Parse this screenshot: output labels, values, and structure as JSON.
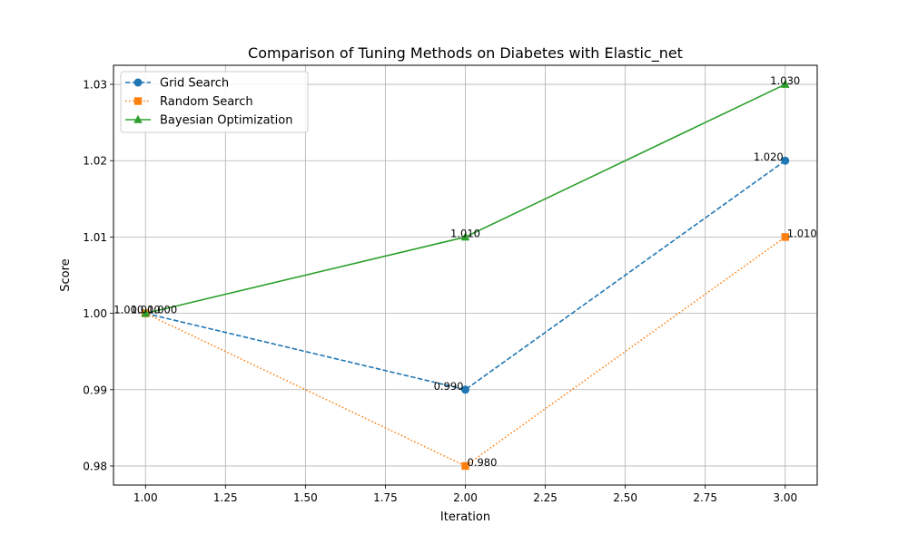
{
  "chart_data": {
    "type": "line",
    "title": "Comparison of Tuning Methods on Diabetes with Elastic_net",
    "xlabel": "Iteration",
    "ylabel": "Score",
    "x": [
      1,
      2,
      3
    ],
    "xlim": [
      0.9,
      3.1
    ],
    "ylim": [
      0.9775,
      1.0325
    ],
    "xticks": [
      "1.00",
      "1.25",
      "1.50",
      "1.75",
      "2.00",
      "2.25",
      "2.50",
      "2.75",
      "3.00"
    ],
    "xtick_values": [
      1.0,
      1.25,
      1.5,
      1.75,
      2.0,
      2.25,
      2.5,
      2.75,
      3.0
    ],
    "yticks": [
      "0.98",
      "0.99",
      "1.00",
      "1.01",
      "1.02",
      "1.03"
    ],
    "ytick_values": [
      0.98,
      0.99,
      1.0,
      1.01,
      1.02,
      1.03
    ],
    "grid": true,
    "legend_position": "top-left",
    "series": [
      {
        "name": "Grid Search",
        "values": [
          1.0,
          0.99,
          1.02
        ],
        "labels": [
          "1.000",
          "0.990",
          "1.020"
        ],
        "color": "#1f77b4",
        "line_style": "dashed",
        "marker": "circle"
      },
      {
        "name": "Random Search",
        "values": [
          1.0,
          0.98,
          1.01
        ],
        "labels": [
          "1.000",
          "0.980",
          "1.010"
        ],
        "color": "#ff7f0e",
        "line_style": "dotted",
        "marker": "square"
      },
      {
        "name": "Bayesian Optimization",
        "values": [
          1.0,
          1.01,
          1.03
        ],
        "labels": [
          "1.000",
          "1.010",
          "1.030"
        ],
        "color": "#2ca02c",
        "line_style": "solid",
        "marker": "triangle"
      }
    ]
  }
}
